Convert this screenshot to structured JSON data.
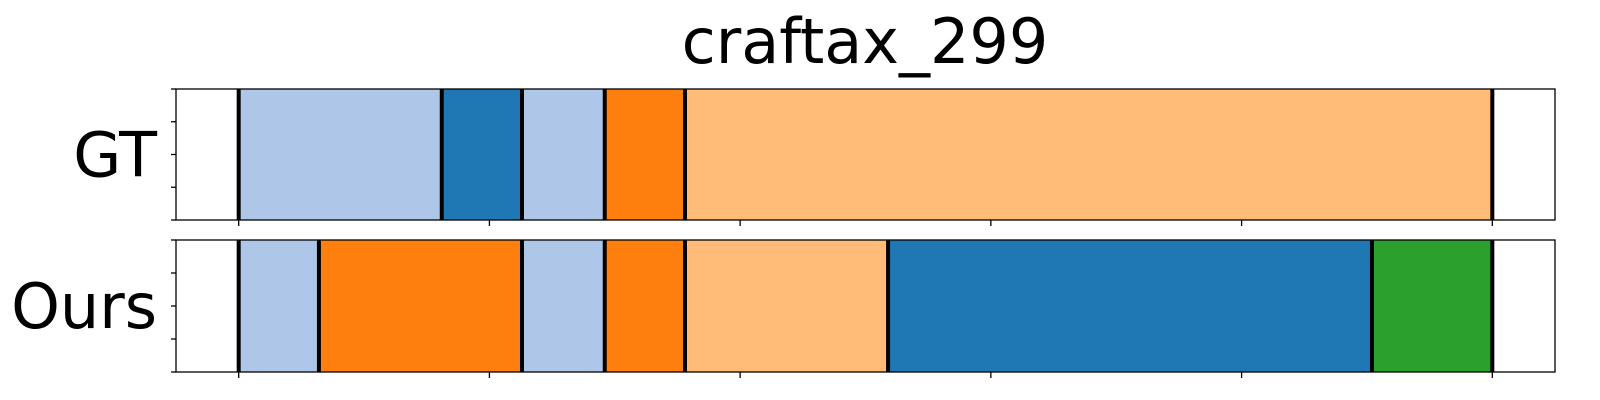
{
  "chart_data": {
    "type": "segmentation-timeline",
    "title": "craftax_299",
    "xlim": [
      -0.25,
      5.25
    ],
    "x_ticks": [
      0,
      1,
      2,
      3,
      4,
      5
    ],
    "y_ticks_per_row": 5,
    "palette": {
      "light_blue": "#aec7e8",
      "blue": "#1f77b4",
      "orange": "#ff7f0e",
      "light_orange": "#ffbb78",
      "green": "#2ca02c"
    },
    "rows": [
      {
        "label": "GT",
        "segments": [
          {
            "start": 0.0,
            "end": 0.81,
            "color": "light_blue"
          },
          {
            "start": 0.81,
            "end": 1.13,
            "color": "blue"
          },
          {
            "start": 1.13,
            "end": 1.46,
            "color": "light_blue"
          },
          {
            "start": 1.46,
            "end": 1.78,
            "color": "orange"
          },
          {
            "start": 1.78,
            "end": 5.0,
            "color": "light_orange"
          }
        ]
      },
      {
        "label": "Ours",
        "segments": [
          {
            "start": 0.0,
            "end": 0.32,
            "color": "light_blue"
          },
          {
            "start": 0.32,
            "end": 1.13,
            "color": "orange"
          },
          {
            "start": 1.13,
            "end": 1.46,
            "color": "light_blue"
          },
          {
            "start": 1.46,
            "end": 1.78,
            "color": "orange"
          },
          {
            "start": 1.78,
            "end": 2.59,
            "color": "light_orange"
          },
          {
            "start": 2.59,
            "end": 4.52,
            "color": "blue"
          },
          {
            "start": 4.52,
            "end": 5.0,
            "color": "green"
          }
        ]
      }
    ]
  }
}
